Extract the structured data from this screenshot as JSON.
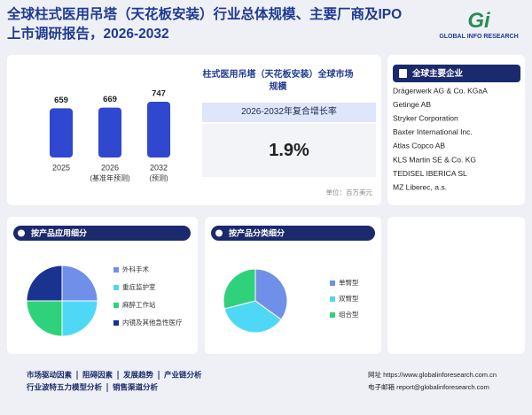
{
  "header": {
    "title": "全球柱式医用吊塔（天花板安装）行业总体规模、主要厂商及IPO上市调研报告，2026-2032",
    "logo_mark": "Gi",
    "logo_text": "GLOBAL INFO RESEARCH"
  },
  "market": {
    "title": "柱式医用吊塔（天花板安装）全球市场规模",
    "cagr_label": "2026-2032年复合增长率",
    "cagr": "1.9%",
    "unit": "单位：百万美元"
  },
  "companies": {
    "title": "全球主要企业",
    "items": [
      "Drägerwerk AG & Co. KGaA",
      "Getinge AB",
      "Stryker Corporation",
      "Baxter International Inc.",
      "Atlas Copco AB",
      "KLS Martin SE & Co. KG",
      "TEDISEL IBERICA SL",
      "MZ Liberec, a.s."
    ]
  },
  "chart_data": [
    {
      "type": "bar",
      "categories": [
        "2025",
        "2026",
        "2032"
      ],
      "category_notes": [
        null,
        "(基准年预测)",
        "(预测)"
      ],
      "values": [
        659,
        669,
        747
      ],
      "color": "#2f48cf"
    },
    {
      "type": "pie",
      "title": "按产品应用细分",
      "categories": [
        "外科手术",
        "重症监护室",
        "麻醉工作站",
        "内镜及其他急性医疗"
      ],
      "values": [
        25,
        25,
        25,
        25
      ],
      "colors": [
        "#6f8fe8",
        "#4fd8f5",
        "#2fd27a",
        "#1a3290"
      ]
    },
    {
      "type": "pie",
      "title": "按产品分类细分",
      "categories": [
        "单臂型",
        "双臂型",
        "组合型"
      ],
      "values": [
        35,
        36,
        29
      ],
      "colors": [
        "#6f8fe8",
        "#4fd8f5",
        "#2fd27a"
      ]
    }
  ],
  "footer": {
    "links": [
      [
        "市场驱动因素",
        "阻碍因素",
        "发展趋势",
        "产业链分析"
      ],
      [
        "行业波特五力模型分析",
        "销售渠道分析"
      ]
    ],
    "website": "网址 https://www.globalinforesearch.com.cn",
    "email": "电子邮箱 report@globalinforesearch.com"
  }
}
